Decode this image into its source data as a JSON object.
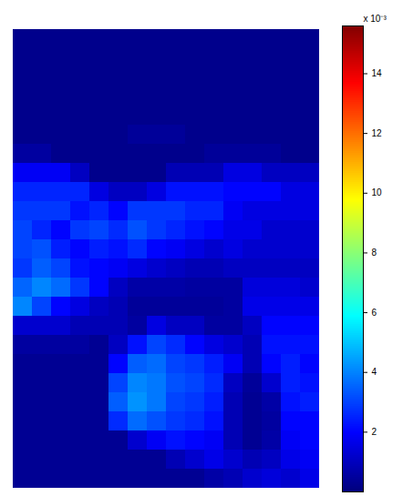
{
  "chart_data": {
    "type": "heatmap",
    "tick_labels": false,
    "cells": [
      [
        0.2,
        0.2,
        0.2,
        0.2,
        0.2,
        0.2,
        0.2,
        0.2,
        0.2,
        0.2,
        0.2,
        0.2,
        0.2,
        0.2,
        0.2,
        0.2
      ],
      [
        0.2,
        0.2,
        0.2,
        0.2,
        0.2,
        0.2,
        0.2,
        0.2,
        0.2,
        0.2,
        0.2,
        0.2,
        0.2,
        0.2,
        0.2,
        0.2
      ],
      [
        0.2,
        0.2,
        0.2,
        0.2,
        0.2,
        0.2,
        0.2,
        0.2,
        0.2,
        0.2,
        0.2,
        0.2,
        0.2,
        0.2,
        0.2,
        0.2
      ],
      [
        0.2,
        0.2,
        0.2,
        0.2,
        0.2,
        0.2,
        0.2,
        0.2,
        0.2,
        0.2,
        0.2,
        0.2,
        0.2,
        0.2,
        0.2,
        0.2
      ],
      [
        0.2,
        0.2,
        0.2,
        0.2,
        0.2,
        0.2,
        0.2,
        0.2,
        0.2,
        0.2,
        0.2,
        0.2,
        0.2,
        0.2,
        0.2,
        0.2
      ],
      [
        0.2,
        0.2,
        0.2,
        0.2,
        0.2,
        0.2,
        0.4,
        0.4,
        0.4,
        0.2,
        0.2,
        0.2,
        0.2,
        0.2,
        0.2,
        0.2
      ],
      [
        0.5,
        0.5,
        0.2,
        0.2,
        0.2,
        0.2,
        0.2,
        0.2,
        0.2,
        0.2,
        0.4,
        0.4,
        0.4,
        0.4,
        0.2,
        0.2
      ],
      [
        1.8,
        1.8,
        1.8,
        1.0,
        0.2,
        0.2,
        0.2,
        0.2,
        0.8,
        0.8,
        0.8,
        1.5,
        1.5,
        1.0,
        1.0,
        1.0
      ],
      [
        2.5,
        2.5,
        2.5,
        2.5,
        1.5,
        1.0,
        1.0,
        1.5,
        2.2,
        2.2,
        2.2,
        2.0,
        2.0,
        2.0,
        1.5,
        1.5
      ],
      [
        2.8,
        2.8,
        2.8,
        2.2,
        2.5,
        2.0,
        2.8,
        2.8,
        2.8,
        2.5,
        2.5,
        1.8,
        1.5,
        1.5,
        1.5,
        1.5
      ],
      [
        3.0,
        2.5,
        2.0,
        2.8,
        3.0,
        2.6,
        3.2,
        2.8,
        2.5,
        2.2,
        2.0,
        1.6,
        1.6,
        1.2,
        1.2,
        1.2
      ],
      [
        3.0,
        3.2,
        2.4,
        2.0,
        2.4,
        2.2,
        2.6,
        2.0,
        1.8,
        1.5,
        1.2,
        1.5,
        1.2,
        1.2,
        1.2,
        1.2
      ],
      [
        2.8,
        3.4,
        3.0,
        2.2,
        2.0,
        1.8,
        1.5,
        1.2,
        1.0,
        0.8,
        0.8,
        1.0,
        1.0,
        1.0,
        1.0,
        1.0
      ],
      [
        3.5,
        4.0,
        3.6,
        2.8,
        2.0,
        1.0,
        0.6,
        0.6,
        0.6,
        0.5,
        0.5,
        0.5,
        1.4,
        1.4,
        1.4,
        1.2
      ],
      [
        4.0,
        3.0,
        2.0,
        1.5,
        1.0,
        0.8,
        0.4,
        0.4,
        0.4,
        0.4,
        0.4,
        0.5,
        1.6,
        1.6,
        1.6,
        1.6
      ],
      [
        1.2,
        1.2,
        1.2,
        0.8,
        0.8,
        0.8,
        0.5,
        1.5,
        1.0,
        1.0,
        0.5,
        0.5,
        1.0,
        2.0,
        2.0,
        2.0
      ],
      [
        0.5,
        0.5,
        0.5,
        0.5,
        0.3,
        1.0,
        2.2,
        3.0,
        2.6,
        2.0,
        1.5,
        1.2,
        0.8,
        2.2,
        2.2,
        2.2
      ],
      [
        0.3,
        0.3,
        0.3,
        0.3,
        0.3,
        2.0,
        3.4,
        3.6,
        3.0,
        2.8,
        2.4,
        1.8,
        0.8,
        2.0,
        2.4,
        2.0
      ],
      [
        0.3,
        0.3,
        0.3,
        0.3,
        0.3,
        3.0,
        4.0,
        3.8,
        3.2,
        3.0,
        2.6,
        1.0,
        0.4,
        1.2,
        2.4,
        2.2
      ],
      [
        0.3,
        0.3,
        0.3,
        0.3,
        0.3,
        3.4,
        4.2,
        3.8,
        3.0,
        2.8,
        2.4,
        0.8,
        0.3,
        0.6,
        2.2,
        2.4
      ],
      [
        0.3,
        0.3,
        0.3,
        0.3,
        0.3,
        2.6,
        3.6,
        3.2,
        2.8,
        2.6,
        2.2,
        0.8,
        0.3,
        0.5,
        2.0,
        2.0
      ],
      [
        0.3,
        0.3,
        0.3,
        0.3,
        0.3,
        0.3,
        1.2,
        1.8,
        2.2,
        2.0,
        1.8,
        0.8,
        0.3,
        0.6,
        1.8,
        2.0
      ],
      [
        0.3,
        0.3,
        0.3,
        0.3,
        0.3,
        0.3,
        0.3,
        0.3,
        0.8,
        1.2,
        1.6,
        1.2,
        0.8,
        1.0,
        1.6,
        1.8
      ],
      [
        0.3,
        0.3,
        0.3,
        0.3,
        0.3,
        0.3,
        0.3,
        0.3,
        0.3,
        0.3,
        0.6,
        0.8,
        1.2,
        1.4,
        1.2,
        1.6
      ]
    ],
    "colorbar": {
      "range": [
        0,
        15.6
      ],
      "ticks": [
        2,
        4,
        6,
        8,
        10,
        12,
        14
      ],
      "label": "x 10⁻³"
    }
  }
}
